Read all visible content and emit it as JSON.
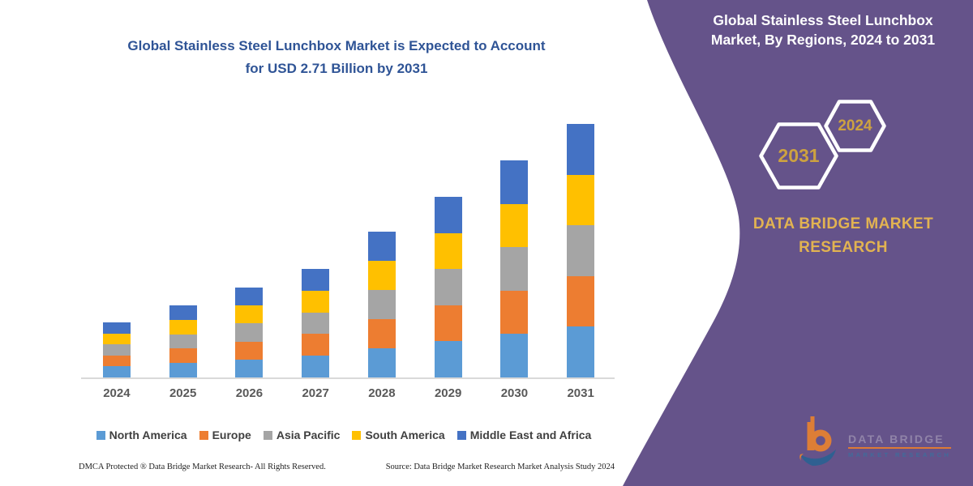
{
  "main_chart": {
    "title_line1": "Global Stainless Steel Lunchbox Market is Expected to Account",
    "title_line2": "for USD 2.71 Billion by 2031",
    "title_color": "#2F5496",
    "axis_line_color": "#D9D9D9"
  },
  "chart_data": {
    "type": "bar",
    "stacked": true,
    "title": "Global Stainless Steel Lunchbox Market is Expected to Account for USD 2.71 Billion by 2031",
    "unit": "USD Billion",
    "categories": [
      "2024",
      "2025",
      "2026",
      "2027",
      "2028",
      "2029",
      "2030",
      "2031"
    ],
    "series": [
      {
        "name": "North America",
        "color": "#5B9BD5",
        "values": [
          0.118,
          0.154,
          0.192,
          0.232,
          0.312,
          0.386,
          0.464,
          0.542
        ]
      },
      {
        "name": "Europe",
        "color": "#ED7D31",
        "values": [
          0.118,
          0.154,
          0.192,
          0.232,
          0.312,
          0.386,
          0.464,
          0.542
        ]
      },
      {
        "name": "Asia Pacific",
        "color": "#A5A5A5",
        "values": [
          0.118,
          0.154,
          0.192,
          0.232,
          0.312,
          0.386,
          0.464,
          0.542
        ]
      },
      {
        "name": "South America",
        "color": "#FFC000",
        "values": [
          0.118,
          0.154,
          0.192,
          0.232,
          0.312,
          0.386,
          0.464,
          0.542
        ]
      },
      {
        "name": "Middle East and Africa",
        "color": "#4472C4",
        "values": [
          0.118,
          0.154,
          0.192,
          0.232,
          0.312,
          0.386,
          0.464,
          0.542
        ]
      }
    ],
    "totals_estimated": [
      0.59,
      0.77,
      0.96,
      1.16,
      1.56,
      1.93,
      2.32,
      2.71
    ],
    "ylim": [
      0,
      2.9
    ],
    "grid": false,
    "y_axis_visible": false,
    "legend_position": "bottom"
  },
  "footer": {
    "left": "DMCA Protected ® Data Bridge Market Research-  All Rights Reserved.",
    "right": "Source: Data Bridge Market Research  Market Analysis Study 2024"
  },
  "side_panel": {
    "background_color": "#65538A",
    "title_line1": "Global Stainless Steel Lunchbox",
    "title_line2": "Market, By Regions, 2024 to 2031",
    "hexagon_large_label": "2031",
    "hexagon_small_label": "2024",
    "hexagon_text_color": "#CDA240",
    "brand_line1": "DATA BRIDGE MARKET",
    "brand_line2": "RESEARCH",
    "brand_text_color": "#E2B351"
  },
  "watermark_logo": {
    "brand_top": "DATA BRIDGE",
    "brand_bottom": "MARKET RESEARCH",
    "mark_orange": "#E8822F",
    "mark_blue": "#2B6292"
  }
}
